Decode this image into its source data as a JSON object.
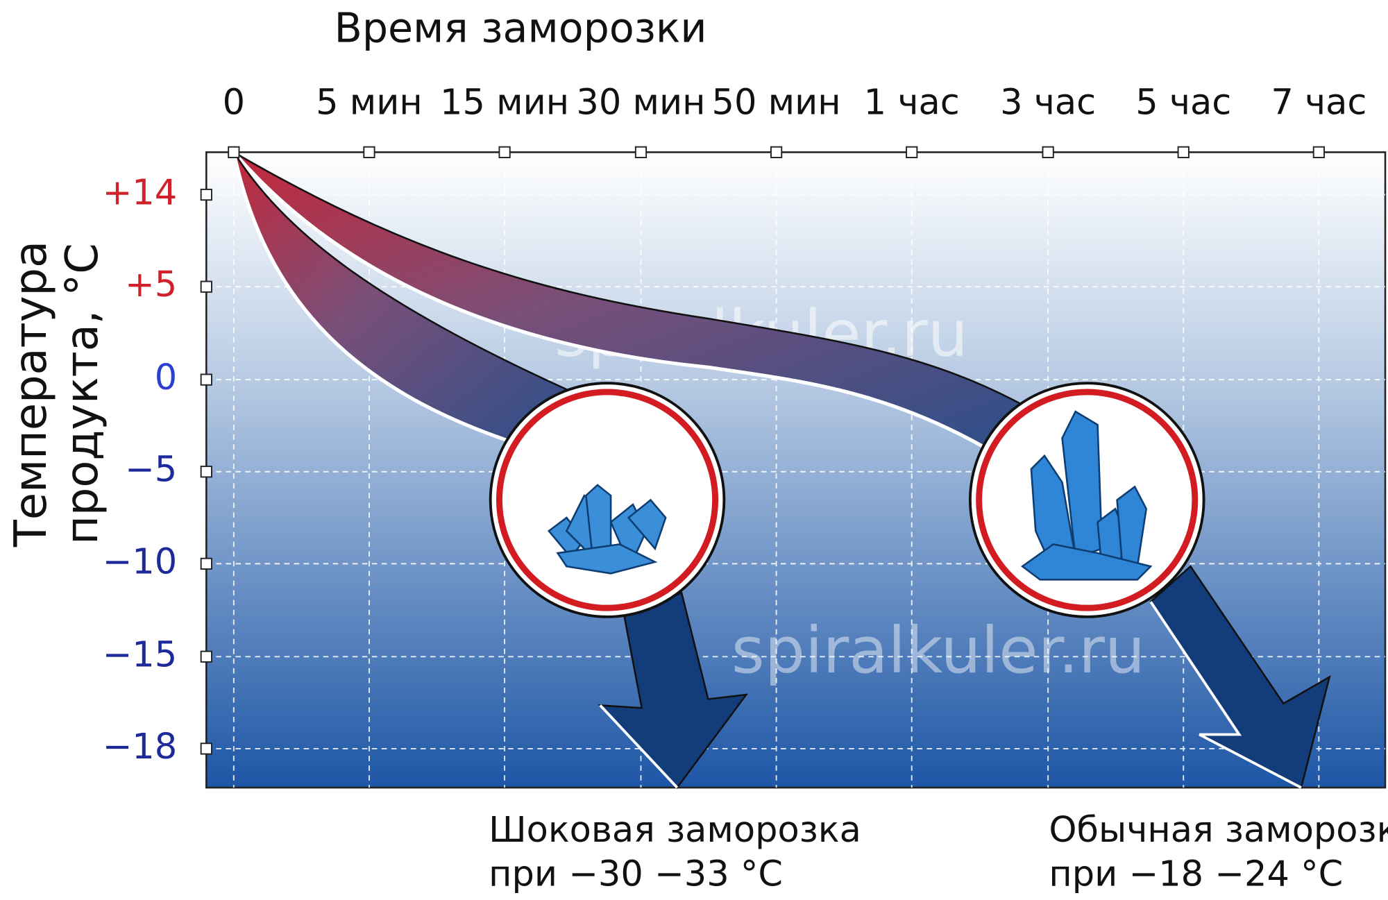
{
  "title": "Время заморозки",
  "x_labels": [
    "0",
    "5 мин",
    "15 мин",
    "30 мин",
    "50 мин",
    "1 час",
    "3 час",
    "5 час",
    "7 час"
  ],
  "y_axis_title": [
    "Температура",
    "продукта, °С"
  ],
  "y_labels": [
    "+14",
    "+5",
    "0",
    "−5",
    "−10",
    "−15",
    "−18"
  ],
  "watermarks": [
    "spiralkuler.ru",
    "spiralkuler.ru"
  ],
  "annotations": [
    {
      "title": "Шоковая заморозка",
      "subtitle": "при −30 −33 °С"
    },
    {
      "title": "Обычная заморозка",
      "subtitle": "при −18 −24 °С"
    }
  ]
}
